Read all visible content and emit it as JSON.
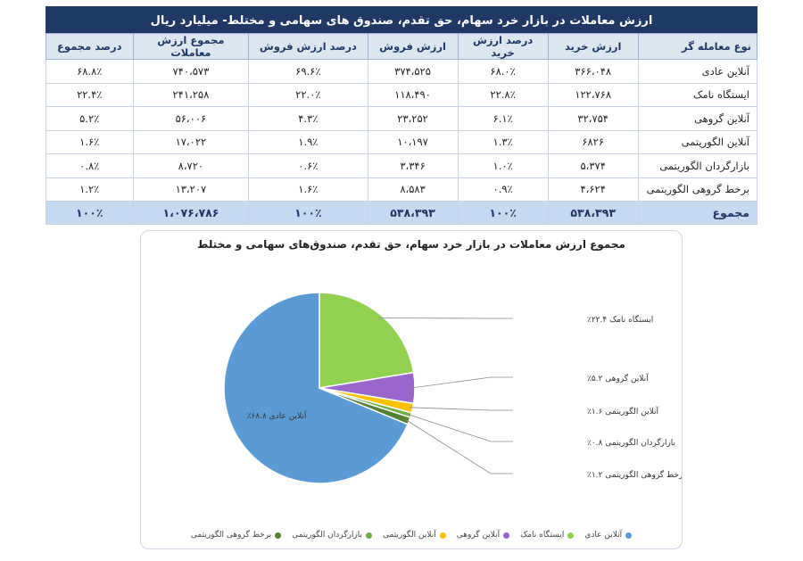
{
  "table": {
    "title": "ارزش معاملات در بازار خرد سهام، حق تقدم، صندوق های سهامی و مختلط- میلیارد ریال",
    "headers": [
      "نوع معامله گر",
      "ارزش خرید",
      "درصد ارزش خرید",
      "ارزش فروش",
      "درصد ارزش فروش",
      "مجموع ارزش معاملات",
      "درصد مجموع"
    ],
    "rows": [
      [
        "آنلاین عادی",
        "۳۶۶،۰۴۸",
        "۶۸.۰٪",
        "۳۷۴،۵۲۵",
        "۶۹.۶٪",
        "۷۴۰،۵۷۳",
        "۶۸.۸٪"
      ],
      [
        "ایستگاه نامک",
        "۱۲۲،۷۶۸",
        "۲۲.۸٪",
        "۱۱۸،۴۹۰",
        "۲۲.۰٪",
        "۲۴۱،۲۵۸",
        "۲۲.۴٪"
      ],
      [
        "آنلاین گروهی",
        "۳۲،۷۵۴",
        "۶.۱٪",
        "۲۳،۲۵۲",
        "۴.۳٪",
        "۵۶،۰۰۶",
        "۵.۲٪"
      ],
      [
        "آنلاین الگوریتمی",
        "۶۸۲۶",
        "۱.۳٪",
        "۱۰،۱۹۷",
        "۱.۹٪",
        "۱۷،۰۲۲",
        "۱.۶٪"
      ],
      [
        "بازارگردان الگوریتمی",
        "۵،۳۷۴",
        "۱.۰٪",
        "۳،۳۴۶",
        "۰.۶٪",
        "۸،۷۲۰",
        "۰.۸٪"
      ],
      [
        "برخط گروهی الگوریتمی",
        "۴،۶۲۴",
        "۰.۹٪",
        "۸،۵۸۳",
        "۱.۶٪",
        "۱۳،۲۰۷",
        "۱.۲٪"
      ]
    ],
    "total": [
      "مجموع",
      "۵۳۸،۳۹۳",
      "۱۰۰٪",
      "۵۳۸،۳۹۳",
      "۱۰۰٪",
      "۱،۰۷۶،۷۸۶",
      "۱۰۰٪"
    ]
  },
  "chart_data": {
    "type": "pie",
    "title": "مجموع ارزش معاملات در بازار خرد سهام، حق تقدم، صندوق‌های سهامی و مختلط",
    "categories": [
      "آنلاین عادی",
      "ایستگاه نامک",
      "آنلاین گروهی",
      "آنلاین الگوریتمی",
      "بازارگردان الگوریتمی",
      "برخط گروهی الگوریتمی"
    ],
    "values": [
      68.8,
      22.4,
      5.2,
      1.6,
      0.8,
      1.2
    ],
    "labels": [
      "آنلاین عادی ۶۸.۸٪",
      "ایستگاه نامک ۲۲.۴٪",
      "آنلاین گروهی ۵.۲٪",
      "آنلاین الگوریتمی ۱.۶٪",
      "بازارگردان الگوریتمی ۰.۸٪",
      "برخط گروهی الگوریتمی ۱.۲٪"
    ],
    "colors": [
      "#5b9bd5",
      "#92d050",
      "#9966cc",
      "#ffc000",
      "#70ad47",
      "#548235"
    ],
    "legend_position": "bottom"
  }
}
